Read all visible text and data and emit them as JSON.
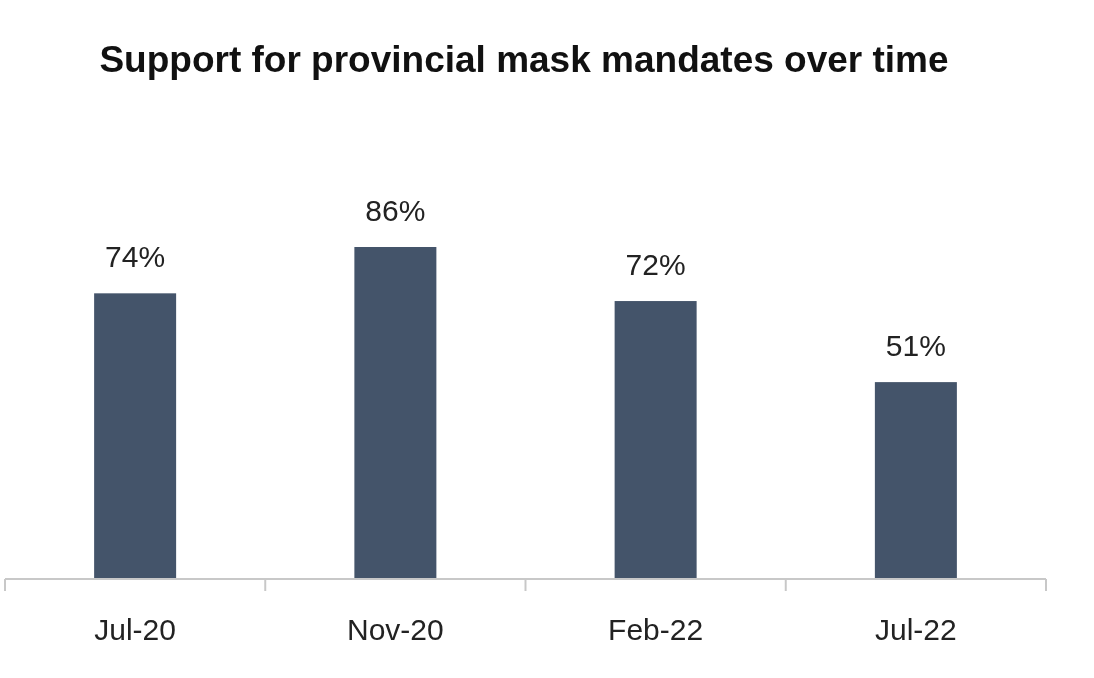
{
  "chart_data": {
    "type": "bar",
    "title": "Support for provincial mask mandates over time",
    "categories": [
      "Jul-20",
      "Nov-20",
      "Feb-22",
      "Jul-22"
    ],
    "values": [
      74,
      86,
      72,
      51
    ],
    "color": "#44546a",
    "data_labels": true,
    "value_labels": [
      "74%",
      "86%",
      "72%",
      "51%"
    ]
  }
}
